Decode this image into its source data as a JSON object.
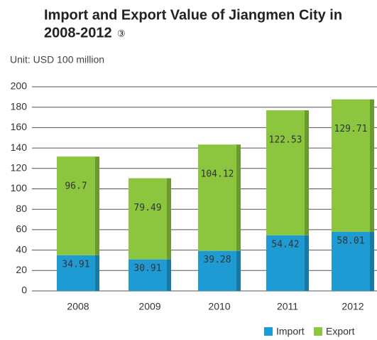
{
  "chart_data": {
    "type": "stacked-bar",
    "title": "Import and Export Value of Jiangmen City in",
    "title_line2": "2008-2012",
    "title_mark": "③",
    "subtitle": "Unit: USD 100 million",
    "categories": [
      "2008",
      "2009",
      "2010",
      "2011",
      "2012"
    ],
    "series": [
      {
        "name": "Import",
        "color": "#1f9bd4",
        "values": [
          34.91,
          30.91,
          39.28,
          54.42,
          58.01
        ]
      },
      {
        "name": "Export",
        "color": "#8cc63e",
        "values": [
          96.7,
          79.49,
          104.12,
          122.53,
          129.71
        ]
      }
    ],
    "ylim": [
      0,
      200
    ],
    "yticks": [
      0,
      20,
      40,
      60,
      80,
      100,
      120,
      140,
      160,
      180,
      200
    ],
    "grid": true,
    "legend": "bottom-right"
  }
}
